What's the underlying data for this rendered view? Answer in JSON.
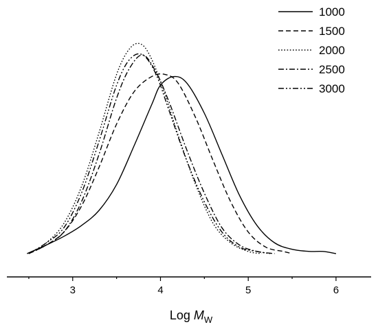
{
  "chart_data": {
    "type": "line",
    "xlabel": {
      "prefix": "Log ",
      "var": "M",
      "sub": "W"
    },
    "ylabel": "",
    "xlim": [
      2.25,
      6.4
    ],
    "ylim": [
      0,
      1.0
    ],
    "xticks": [
      3,
      4,
      5,
      6
    ],
    "xtick_labels": [
      "3",
      "4",
      "5",
      "6"
    ],
    "grid": false,
    "legend_position": "top-right",
    "series": [
      {
        "name": "1000",
        "dash": "solid",
        "x": [
          2.48,
          2.7,
          2.9,
          3.1,
          3.3,
          3.5,
          3.7,
          3.9,
          4.0,
          4.15,
          4.3,
          4.5,
          4.7,
          4.9,
          5.1,
          5.3,
          5.5,
          5.7,
          5.85,
          6.0
        ],
        "y": [
          0.0,
          0.04,
          0.08,
          0.13,
          0.2,
          0.32,
          0.5,
          0.69,
          0.78,
          0.82,
          0.79,
          0.65,
          0.46,
          0.27,
          0.13,
          0.05,
          0.02,
          0.01,
          0.01,
          0.0
        ]
      },
      {
        "name": "1500",
        "dash": "dash",
        "x": [
          2.5,
          2.7,
          2.9,
          3.1,
          3.3,
          3.5,
          3.7,
          3.9,
          4.05,
          4.2,
          4.4,
          4.6,
          4.8,
          5.0,
          5.2,
          5.4,
          5.5
        ],
        "y": [
          0.0,
          0.04,
          0.1,
          0.22,
          0.4,
          0.6,
          0.75,
          0.82,
          0.83,
          0.79,
          0.63,
          0.43,
          0.24,
          0.1,
          0.03,
          0.01,
          0.0
        ]
      },
      {
        "name": "2000",
        "dash": "dot",
        "x": [
          2.5,
          2.7,
          2.9,
          3.1,
          3.3,
          3.5,
          3.65,
          3.78,
          3.9,
          4.05,
          4.2,
          4.4,
          4.6,
          4.8,
          5.0,
          5.15
        ],
        "y": [
          0.0,
          0.05,
          0.14,
          0.31,
          0.56,
          0.83,
          0.95,
          0.97,
          0.9,
          0.74,
          0.55,
          0.32,
          0.14,
          0.05,
          0.01,
          0.0
        ]
      },
      {
        "name": "2500",
        "dash": "dashdot",
        "x": [
          2.5,
          2.7,
          2.9,
          3.1,
          3.3,
          3.5,
          3.65,
          3.8,
          3.95,
          4.1,
          4.3,
          4.5,
          4.7,
          4.9,
          5.1,
          5.3
        ],
        "y": [
          0.0,
          0.04,
          0.1,
          0.24,
          0.46,
          0.72,
          0.86,
          0.92,
          0.84,
          0.7,
          0.48,
          0.28,
          0.12,
          0.04,
          0.01,
          0.0
        ]
      },
      {
        "name": "3000",
        "dash": "dashdotdot",
        "x": [
          2.5,
          2.7,
          2.9,
          3.1,
          3.3,
          3.5,
          3.65,
          3.8,
          3.95,
          4.1,
          4.3,
          4.5,
          4.7,
          4.9,
          5.1,
          5.25
        ],
        "y": [
          0.0,
          0.05,
          0.12,
          0.28,
          0.52,
          0.78,
          0.9,
          0.92,
          0.83,
          0.66,
          0.43,
          0.24,
          0.1,
          0.03,
          0.01,
          0.0
        ]
      }
    ]
  }
}
